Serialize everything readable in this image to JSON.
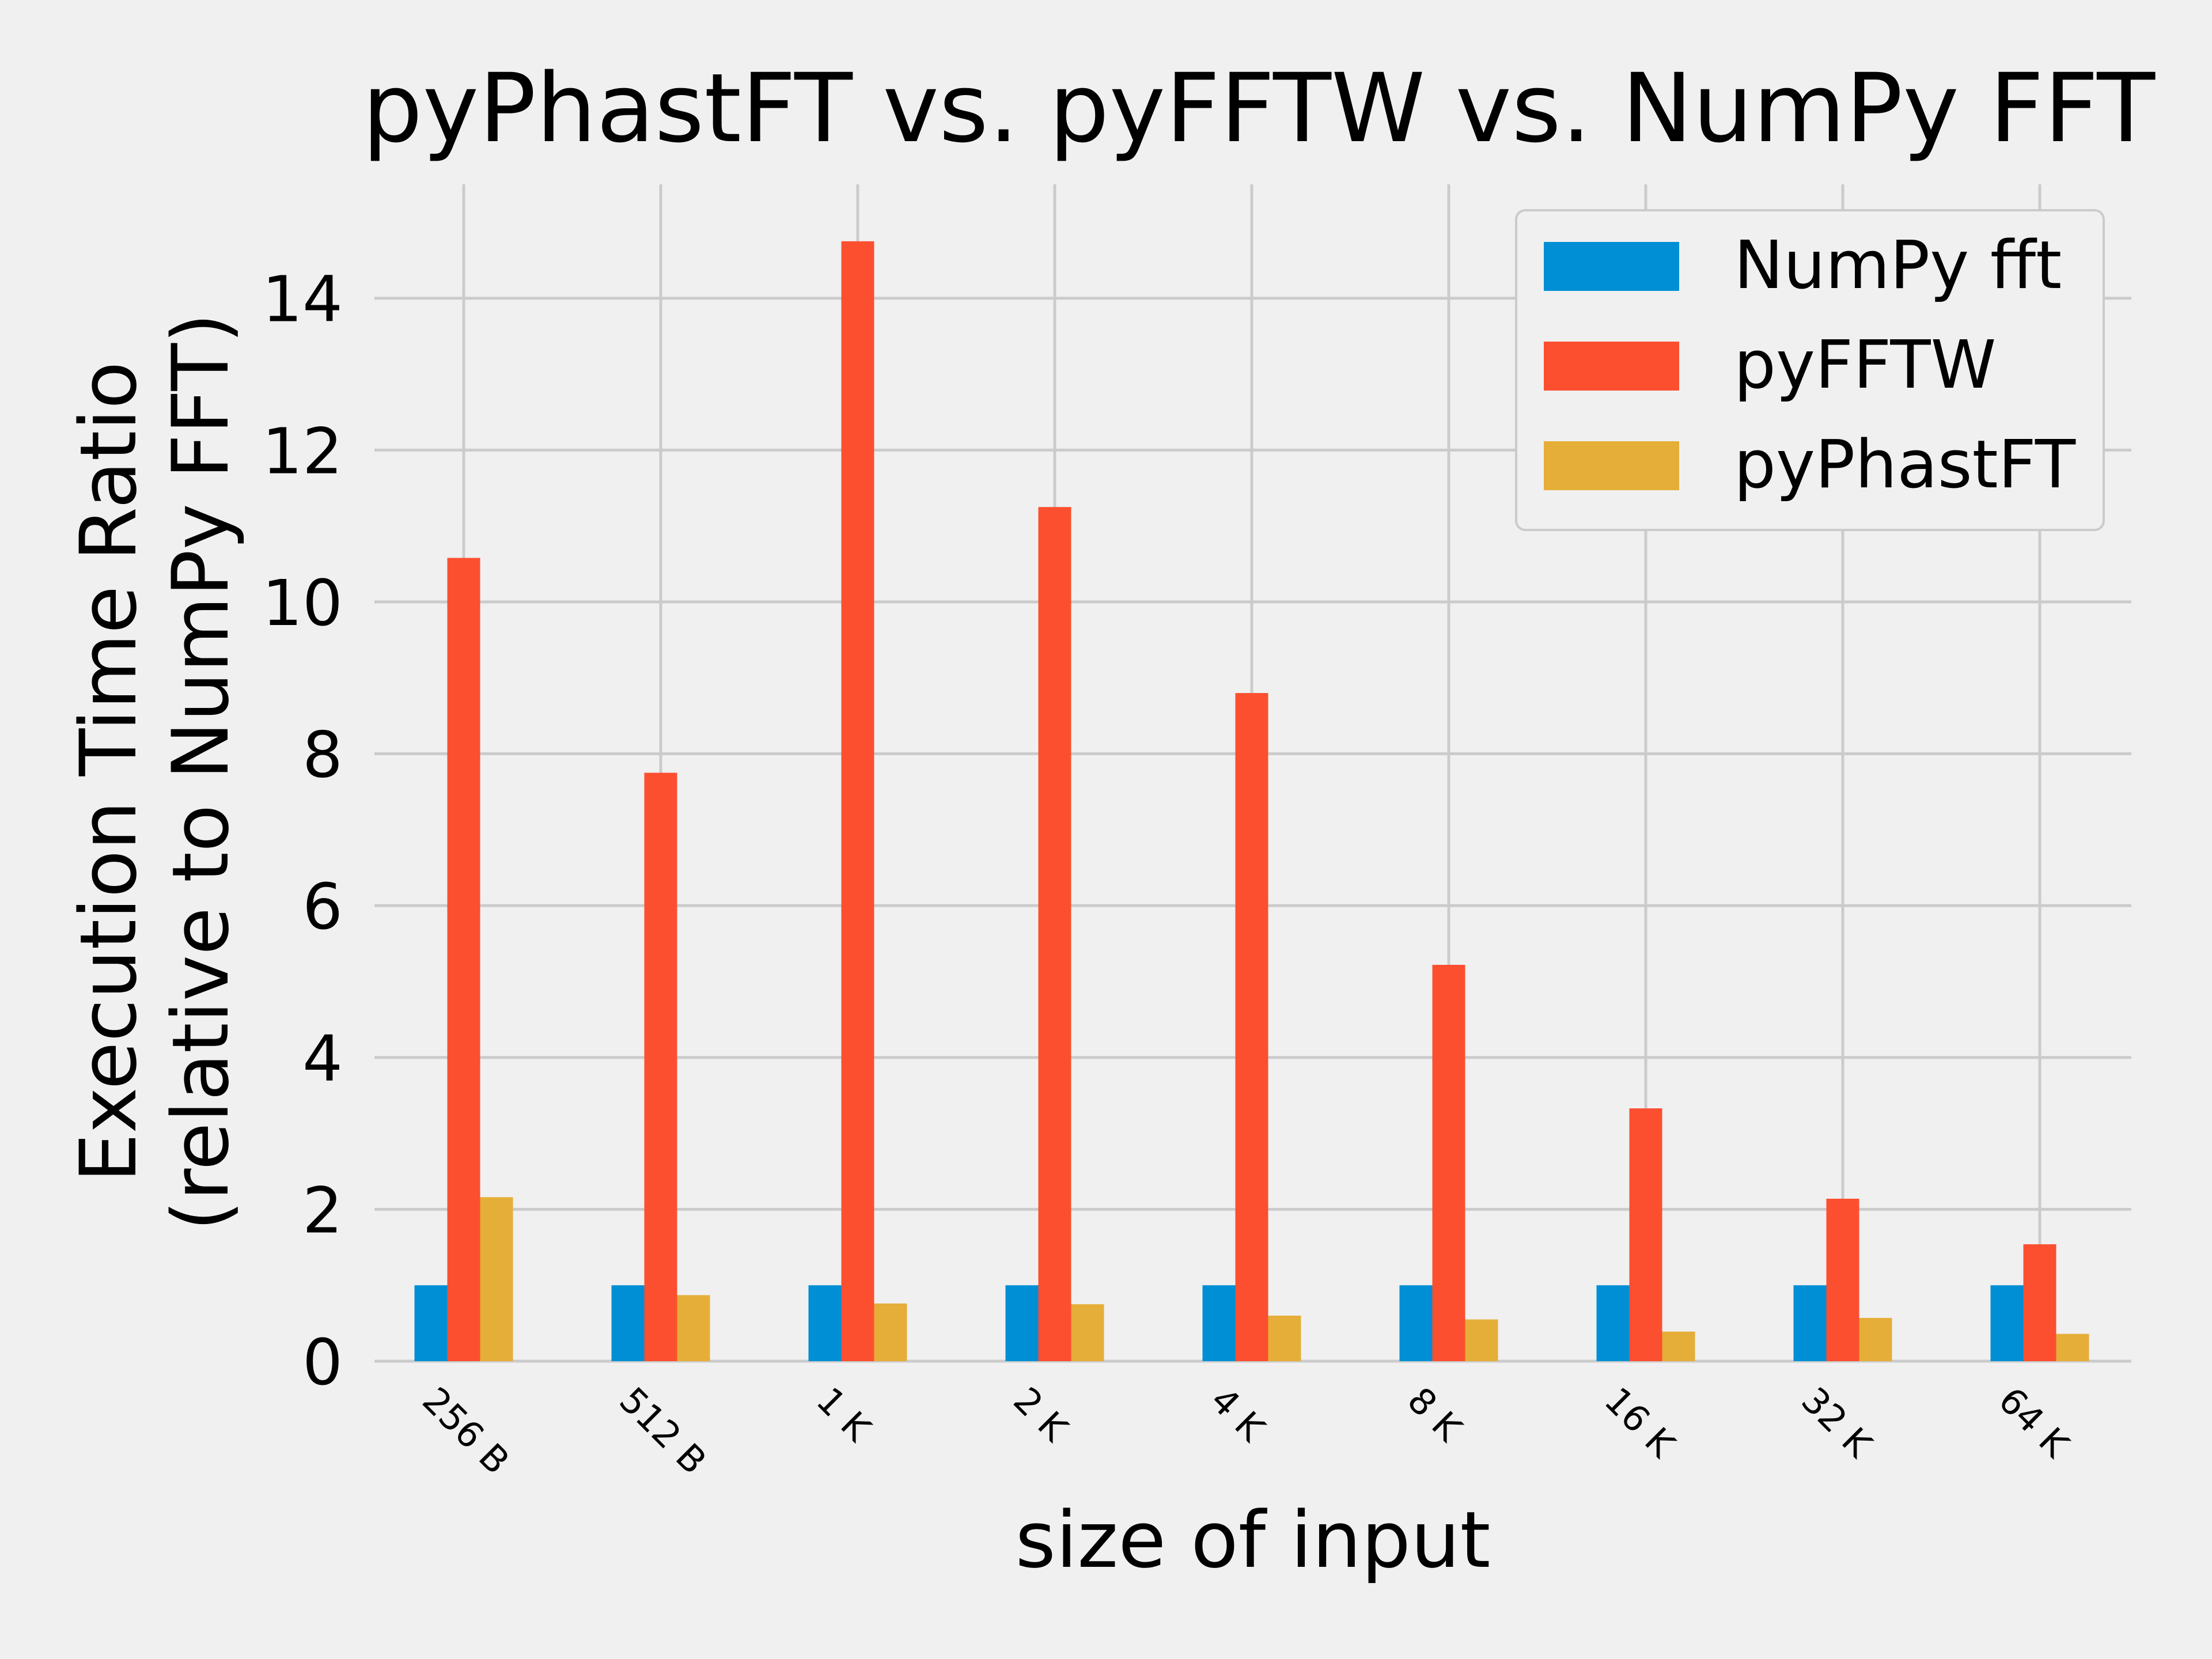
{
  "chart_data": {
    "type": "bar",
    "title": "pyPhastFT vs. pyFFTW vs. NumPy FFT",
    "xlabel": "size of input",
    "ylabel_line1": "Execution Time Ratio",
    "ylabel_line2": "(relative to NumPy FFT)",
    "categories": [
      "256 B",
      "512 B",
      "1 K",
      "2 K",
      "4 K",
      "8 K",
      "16 K",
      "32 K",
      "64 K"
    ],
    "series": [
      {
        "name": "NumPy fft",
        "color": "#008fd5",
        "values": [
          1.0,
          1.0,
          1.0,
          1.0,
          1.0,
          1.0,
          1.0,
          1.0,
          1.0
        ]
      },
      {
        "name": "pyFFTW",
        "color": "#fc4f30",
        "values": [
          10.58,
          7.75,
          14.75,
          11.25,
          8.8,
          5.22,
          3.33,
          2.14,
          1.54
        ]
      },
      {
        "name": "pyPhastFT",
        "color": "#e5ae38",
        "values": [
          2.16,
          0.87,
          0.76,
          0.75,
          0.6,
          0.55,
          0.39,
          0.57,
          0.36
        ]
      }
    ],
    "ylim": [
      0,
      15.5
    ],
    "yticks": [
      0,
      2,
      4,
      6,
      8,
      10,
      12,
      14
    ],
    "grid": true,
    "legend_position": "top-right"
  }
}
